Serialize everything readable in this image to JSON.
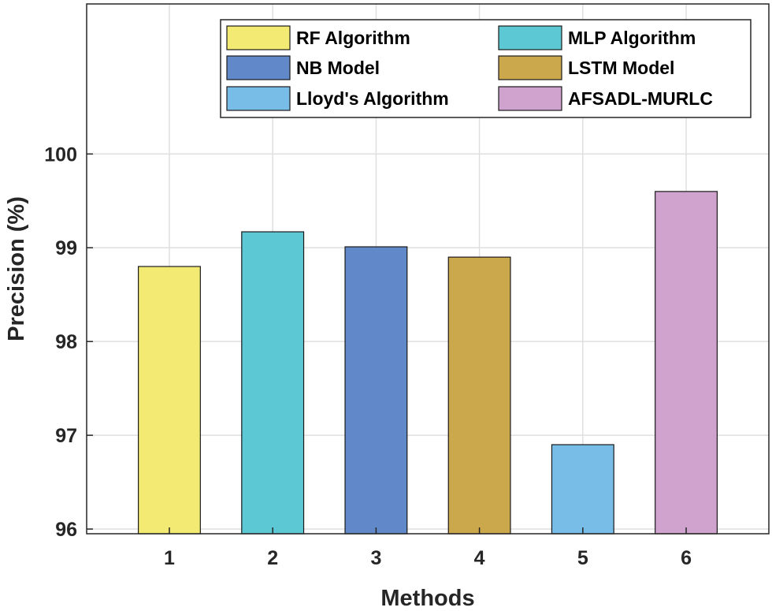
{
  "chart_data": {
    "type": "bar",
    "title": "",
    "xlabel": "Methods",
    "ylabel": "Precision (%)",
    "categories": [
      "1",
      "2",
      "3",
      "4",
      "5",
      "6"
    ],
    "values": [
      98.8,
      99.17,
      99.01,
      98.9,
      96.9,
      99.6
    ],
    "series_names": [
      "RF Algorithm",
      "MLP Algorithm",
      "NB Model",
      "LSTM Model",
      "Lloyd's Algorithm",
      "AFSADL-MURLC"
    ],
    "colors": [
      "#f3ea74",
      "#5cc8d3",
      "#6189c9",
      "#cba84b",
      "#77bde8",
      "#cfa3ce"
    ],
    "ylim": [
      95.95,
      101.6
    ],
    "yticks": [
      "96",
      "97",
      "98",
      "99",
      "100"
    ],
    "grid": true,
    "legend_position": "top-right",
    "legend_entries": [
      {
        "label": "RF Algorithm",
        "color": "#f3ea74"
      },
      {
        "label": "MLP Algorithm",
        "color": "#5cc8d3"
      },
      {
        "label": "NB Model",
        "color": "#6189c9"
      },
      {
        "label": "LSTM Model",
        "color": "#cba84b"
      },
      {
        "label": "Lloyd's Algorithm",
        "color": "#77bde8"
      },
      {
        "label": "AFSADL-MURLC",
        "color": "#cfa3ce"
      }
    ]
  }
}
